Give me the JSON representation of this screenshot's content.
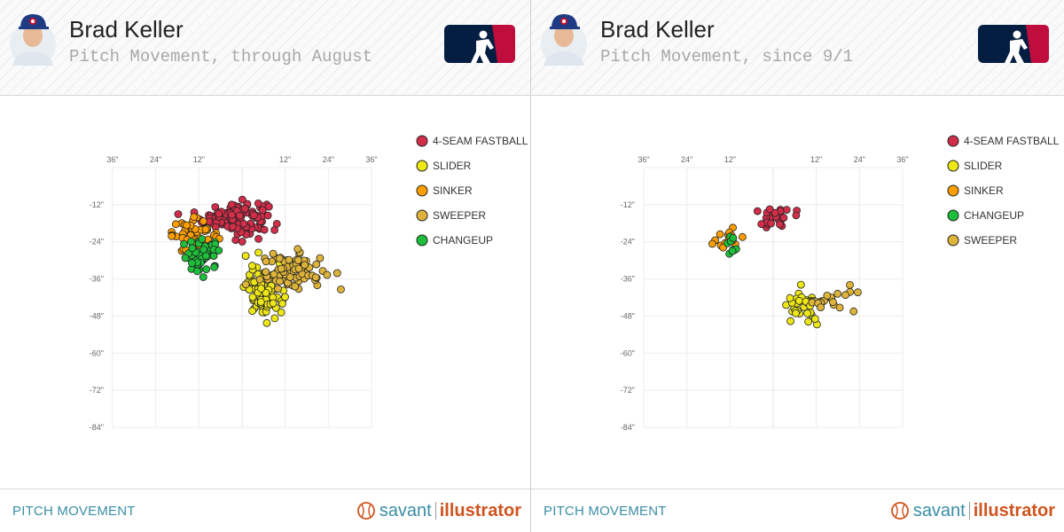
{
  "panels": [
    {
      "player_name": "Brad Keller",
      "subtitle": "Pitch Movement, through August",
      "footer_label": "PITCH MOVEMENT",
      "brand": {
        "savant": "savant",
        "illustrator": "illustrator"
      }
    },
    {
      "player_name": "Brad Keller",
      "subtitle": "Pitch Movement, since 9/1",
      "footer_label": "PITCH MOVEMENT",
      "brand": {
        "savant": "savant",
        "illustrator": "illustrator"
      }
    }
  ],
  "colors": {
    "4-SEAM FASTBALL": "#d22d49",
    "SLIDER": "#eee716",
    "SINKER": "#fe9d00",
    "SWEEPER": "#ddb33a",
    "CHANGEUP": "#1dbe3a",
    "accent": "#3b8ea5",
    "brand_orange": "#d0541e"
  },
  "chart_data": [
    {
      "type": "scatter",
      "title": "Pitch Movement, through August",
      "x_ticks": [
        "36\"",
        "24\"",
        "12\"",
        "12\"",
        "24\"",
        "36\""
      ],
      "x_tick_values": [
        -36,
        -24,
        -12,
        12,
        24,
        36
      ],
      "y_ticks": [
        "-12\"",
        "-24\"",
        "-36\"",
        "-48\"",
        "-60\"",
        "-72\"",
        "-84\""
      ],
      "y_tick_values": [
        -12,
        -24,
        -36,
        -48,
        -60,
        -72,
        -84
      ],
      "xlim": [
        -36,
        36
      ],
      "ylim": [
        -84,
        0
      ],
      "legend": [
        "4-SEAM FASTBALL",
        "SLIDER",
        "SINKER",
        "SWEEPER",
        "CHANGEUP"
      ],
      "series": [
        {
          "name": "4-SEAM FASTBALL",
          "count": 130,
          "center": [
            -2,
            -16
          ],
          "spread": [
            4.5,
            2.6
          ]
        },
        {
          "name": "SINKER",
          "count": 55,
          "center": [
            -13,
            -22
          ],
          "spread": [
            3.2,
            2.6
          ]
        },
        {
          "name": "CHANGEUP",
          "count": 55,
          "center": [
            -11,
            -29
          ],
          "spread": [
            2.8,
            2.8
          ]
        },
        {
          "name": "SLIDER",
          "count": 85,
          "center": [
            6,
            -40
          ],
          "spread": [
            2.6,
            4.2
          ]
        },
        {
          "name": "SWEEPER",
          "count": 80,
          "center": [
            14,
            -34
          ],
          "spread": [
            4.5,
            3.0
          ]
        }
      ]
    },
    {
      "type": "scatter",
      "title": "Pitch Movement, since 9/1",
      "x_ticks": [
        "36\"",
        "24\"",
        "12\"",
        "12\"",
        "24\"",
        "36\""
      ],
      "x_tick_values": [
        -36,
        -24,
        -12,
        12,
        24,
        36
      ],
      "y_ticks": [
        "-12\"",
        "-24\"",
        "-36\"",
        "-48\"",
        "-60\"",
        "-72\"",
        "-84\""
      ],
      "y_tick_values": [
        -12,
        -24,
        -36,
        -48,
        -60,
        -72,
        -84
      ],
      "xlim": [
        -36,
        36
      ],
      "ylim": [
        -84,
        0
      ],
      "legend": [
        "4-SEAM FASTBALL",
        "SLIDER",
        "SINKER",
        "CHANGEUP",
        "SWEEPER"
      ],
      "series": [
        {
          "name": "4-SEAM FASTBALL",
          "count": 30,
          "center": [
            -0.5,
            -16
          ],
          "spread": [
            3.2,
            1.8
          ]
        },
        {
          "name": "SINKER",
          "count": 16,
          "center": [
            -13,
            -23
          ],
          "spread": [
            2.2,
            2.0
          ]
        },
        {
          "name": "CHANGEUP",
          "count": 8,
          "center": [
            -11.5,
            -26
          ],
          "spread": [
            1.4,
            2.0
          ]
        },
        {
          "name": "SLIDER",
          "count": 38,
          "center": [
            8,
            -44
          ],
          "spread": [
            2.2,
            2.8
          ]
        },
        {
          "name": "SWEEPER",
          "count": 18,
          "center": [
            16,
            -43
          ],
          "spread": [
            3.4,
            3.5
          ]
        }
      ]
    }
  ]
}
